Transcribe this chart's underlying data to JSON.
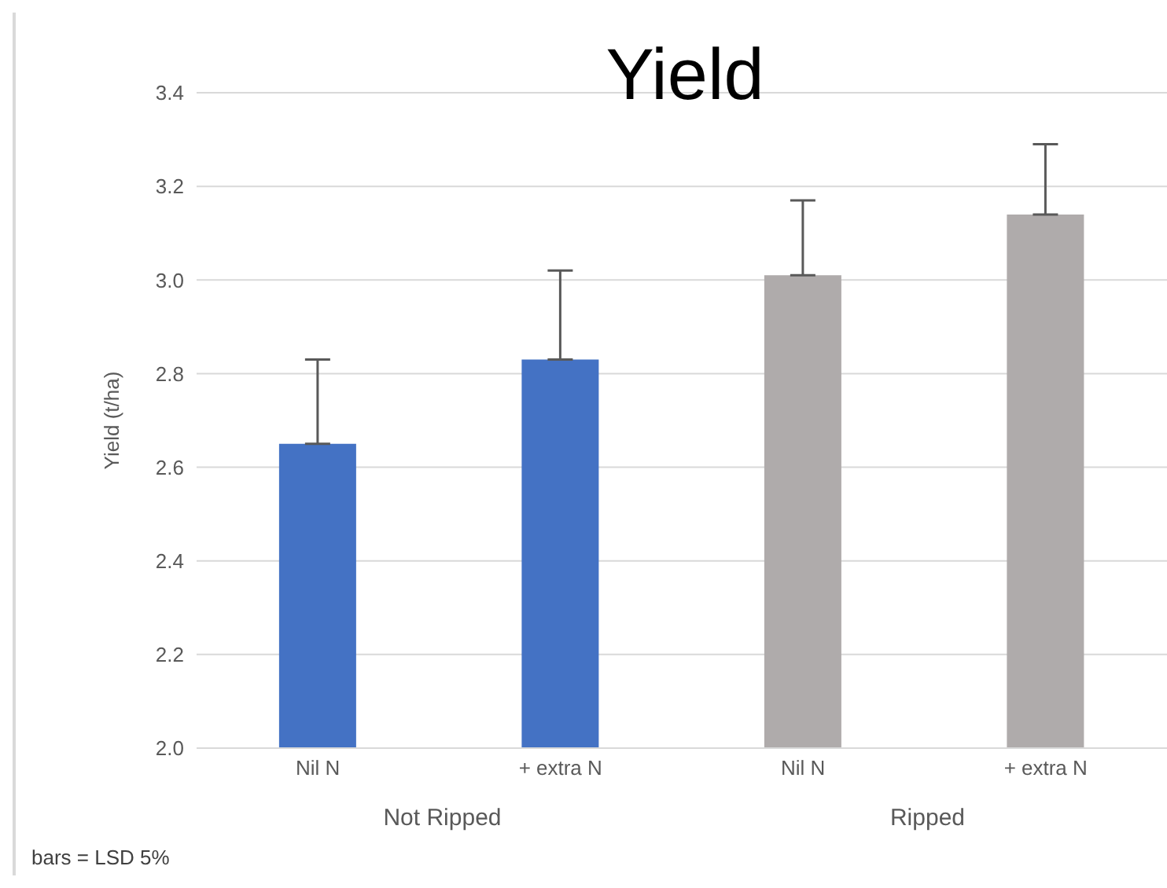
{
  "chart_data": {
    "type": "bar",
    "title": "Yield",
    "ylabel": "Yield (t/ha)",
    "categories": [
      "Nil N",
      "+ extra N",
      "Nil N",
      "+ extra N"
    ],
    "values": [
      2.65,
      2.83,
      3.01,
      3.14
    ],
    "colors": [
      "#4472c4",
      "#4472c4",
      "#afabab",
      "#afabab"
    ],
    "errors": [
      [
        2.65,
        2.83
      ],
      [
        2.83,
        3.02
      ],
      [
        3.01,
        3.17
      ],
      [
        3.14,
        3.29
      ]
    ],
    "ylim": [
      2.0,
      3.4
    ],
    "yticks": [
      {
        "value": 2.0,
        "label": "2.0"
      },
      2.2,
      2.4,
      2.6,
      2.8,
      {
        "value": 3.0,
        "label": "3.0"
      },
      3.2,
      3.4
    ],
    "grid": "y",
    "annotations": [
      "Not Ripped",
      "Ripped",
      "bars = LSD 5%"
    ]
  }
}
